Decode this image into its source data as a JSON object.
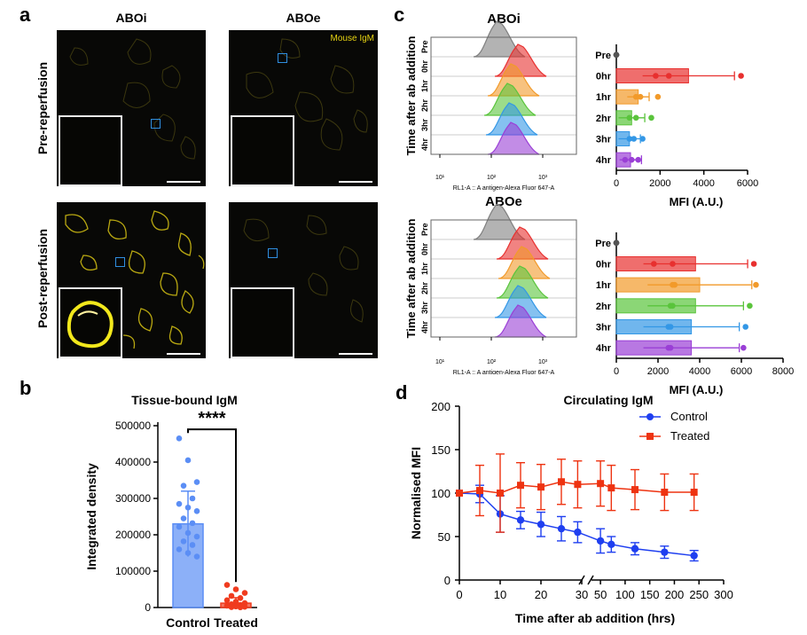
{
  "panel_a": {
    "letter": "a",
    "col_headers": [
      "ABOi",
      "ABOe"
    ],
    "row_headers": [
      "Pre-reperfusion",
      "Post-reperfusion"
    ],
    "stain_label": "Mouse IgM",
    "colors": {
      "stain": "#e8d40c",
      "roi": "#2f8fe0",
      "inset_border": "#e8e8e8"
    }
  },
  "panel_b": {
    "letter": "b"
  },
  "panel_c": {
    "letter": "c",
    "histo_ylabel": "Time after ab addition",
    "histo_xlabel": "RL1-A :: A antigen-Alexa Fluor   647-A",
    "time_labels": [
      "Pre",
      "0hr",
      "1hr",
      "2hr",
      "3hr",
      "4hr"
    ],
    "histo_colors": [
      "#808080",
      "#e8302f",
      "#f29a2a",
      "#5ac43c",
      "#3397e6",
      "#9a3fd6"
    ]
  },
  "panel_d": {
    "letter": "d"
  },
  "chart_data": [
    {
      "type": "bar",
      "title": "Tissue-bound IgM",
      "ylabel": "Integrated density",
      "xlabel": "",
      "categories": [
        "Control",
        "Treated"
      ],
      "values": [
        230000,
        12000
      ],
      "error": [
        90000,
        15000
      ],
      "ylim": [
        0,
        500000
      ],
      "yticks": [
        0,
        100000,
        200000,
        300000,
        400000,
        500000
      ],
      "annotation": "****",
      "colors": [
        "#5b8ef5",
        "#f03b1e"
      ],
      "points": {
        "Control": [
          465000,
          405000,
          345000,
          335000,
          300000,
          285000,
          275000,
          265000,
          245000,
          232000,
          222000,
          205000,
          195000,
          182000,
          172000,
          160000,
          150000,
          140000
        ],
        "Treated": [
          62000,
          50000,
          40000,
          32000,
          26000,
          20000,
          16000,
          12000,
          9000,
          7000,
          5000,
          3000,
          2000,
          1000,
          500
        ]
      }
    },
    {
      "type": "bar",
      "title": "ABOi",
      "xlabel": "MFI (A.U.)",
      "categories": [
        "Pre",
        "0hr",
        "1hr",
        "2hr",
        "3hr",
        "4hr"
      ],
      "values": [
        0,
        3300,
        1000,
        700,
        600,
        650
      ],
      "error": [
        0,
        2100,
        500,
        600,
        500,
        500
      ],
      "xlim": [
        0,
        6000
      ],
      "xticks": [
        0,
        2000,
        4000,
        6000
      ],
      "points": [
        [
          0,
          0,
          0
        ],
        [
          1800,
          2400,
          5700
        ],
        [
          900,
          1100,
          1900
        ],
        [
          600,
          900,
          1600
        ],
        [
          600,
          800,
          1200
        ],
        [
          400,
          700,
          1000
        ]
      ]
    },
    {
      "type": "bar",
      "title": "ABOe",
      "xlabel": "MFI (A.U.)",
      "categories": [
        "Pre",
        "0hr",
        "1hr",
        "2hr",
        "3hr",
        "4hr"
      ],
      "values": [
        0,
        3800,
        4000,
        3800,
        3600,
        3600
      ],
      "error": [
        0,
        2500,
        2500,
        2300,
        2300,
        2300
      ],
      "xlim": [
        0,
        8000
      ],
      "xticks": [
        0,
        2000,
        4000,
        6000,
        8000
      ],
      "points": [
        [
          0,
          0,
          0
        ],
        [
          1800,
          2700,
          6600
        ],
        [
          2700,
          2800,
          6700
        ],
        [
          2600,
          2700,
          6400
        ],
        [
          2500,
          2600,
          6200
        ],
        [
          2500,
          2600,
          6100
        ]
      ]
    },
    {
      "type": "line",
      "title": "Circulating IgM",
      "xlabel": "Time after ab addition (hrs)",
      "ylabel": "Normalised MFI",
      "ylim": [
        0,
        200
      ],
      "yticks": [
        0,
        50,
        100,
        150,
        200
      ],
      "xticks": [
        0,
        10,
        20,
        30,
        50,
        100,
        150,
        200,
        250,
        300
      ],
      "legend_position": "top-right",
      "series": [
        {
          "name": "Control",
          "color": "#1f3ff0",
          "marker": "circle",
          "x": [
            0,
            5,
            10,
            15,
            20,
            25,
            29,
            50,
            72,
            120,
            180,
            240
          ],
          "y": [
            100,
            99,
            76,
            69,
            64,
            59,
            55,
            45,
            41,
            36,
            32,
            28
          ],
          "err": [
            0,
            10,
            21,
            10,
            14,
            14,
            12,
            14,
            9,
            7,
            7,
            6
          ]
        },
        {
          "name": "Treated",
          "color": "#ee3311",
          "marker": "square",
          "x": [
            0,
            5,
            10,
            15,
            20,
            25,
            29,
            50,
            72,
            120,
            180,
            240
          ],
          "y": [
            100,
            103,
            100,
            109,
            107,
            113,
            110,
            111,
            106,
            104,
            101,
            101
          ],
          "err": [
            0,
            29,
            45,
            26,
            26,
            26,
            27,
            26,
            26,
            23,
            21,
            21
          ]
        }
      ]
    }
  ]
}
